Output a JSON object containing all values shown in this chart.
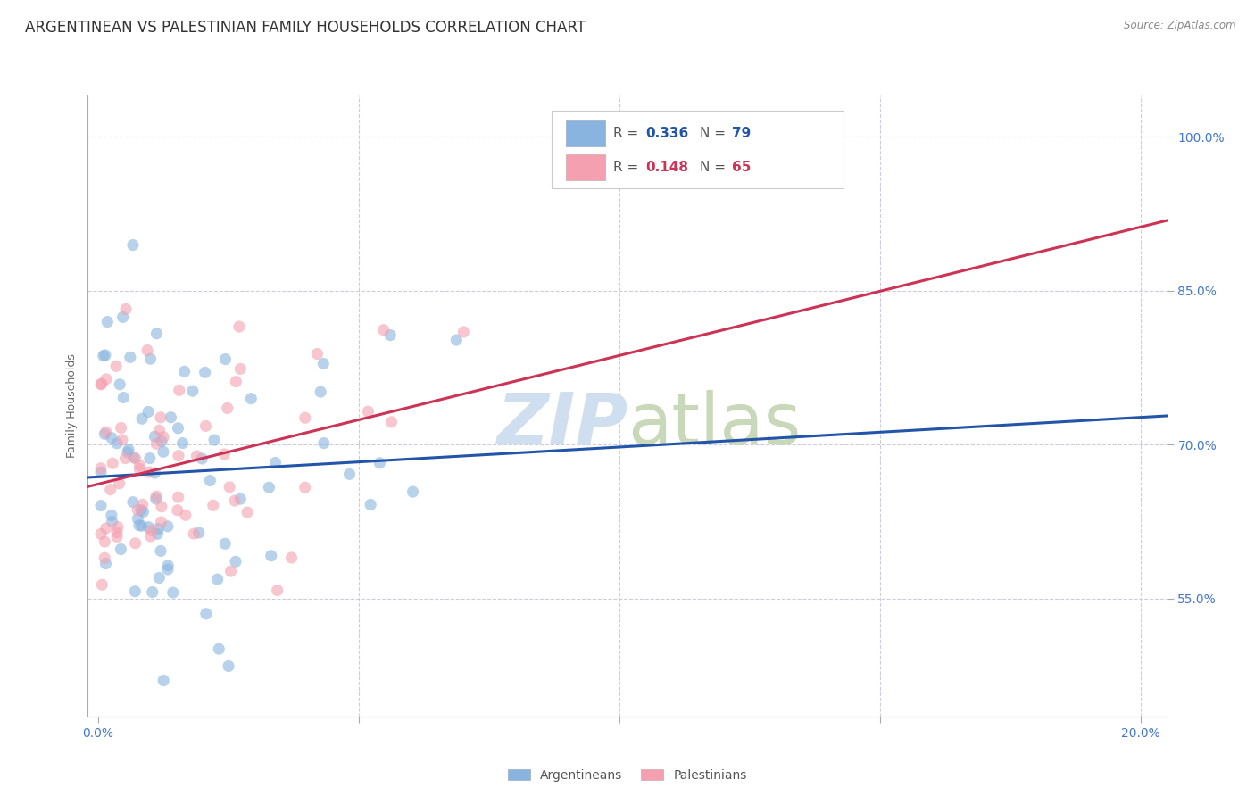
{
  "title": "ARGENTINEAN VS PALESTINIAN FAMILY HOUSEHOLDS CORRELATION CHART",
  "source": "Source: ZipAtlas.com",
  "ylabel": "Family Households",
  "ytick_labels": [
    "55.0%",
    "70.0%",
    "85.0%",
    "100.0%"
  ],
  "ytick_values": [
    0.55,
    0.7,
    0.85,
    1.0
  ],
  "xlim": [
    -0.002,
    0.205
  ],
  "ylim": [
    0.435,
    1.04
  ],
  "color_blue": "#89B4E0",
  "color_pink": "#F4A0B0",
  "line_color_blue": "#2255AA",
  "line_color_pink": "#CC3355",
  "background_color": "#FFFFFF",
  "grid_color": "#CCCCDD",
  "watermark_color": "#D0DFF0",
  "title_fontsize": 12,
  "axis_label_fontsize": 9,
  "tick_fontsize": 10,
  "tick_color": "#4477CC",
  "scatter_alpha": 0.6,
  "scatter_size": 90,
  "arg_seed": 7,
  "pal_seed": 99
}
